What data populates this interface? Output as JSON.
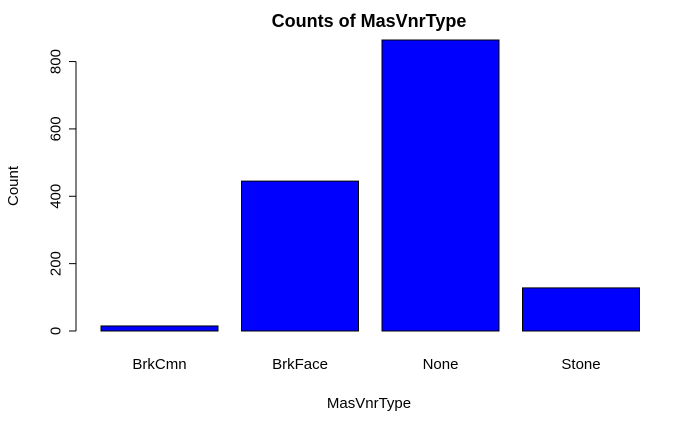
{
  "chart_data": {
    "type": "bar",
    "title": "Counts of MasVnrType",
    "xlabel": "MasVnrType",
    "ylabel": "Count",
    "categories": [
      "BrkCmn",
      "BrkFace",
      "None",
      "Stone"
    ],
    "values": [
      15,
      445,
      864,
      128
    ],
    "ylim": [
      0,
      864
    ],
    "yticks": [
      0,
      200,
      400,
      600,
      800
    ],
    "bar_color": "#0000FF",
    "grid": false,
    "legend": "none"
  }
}
